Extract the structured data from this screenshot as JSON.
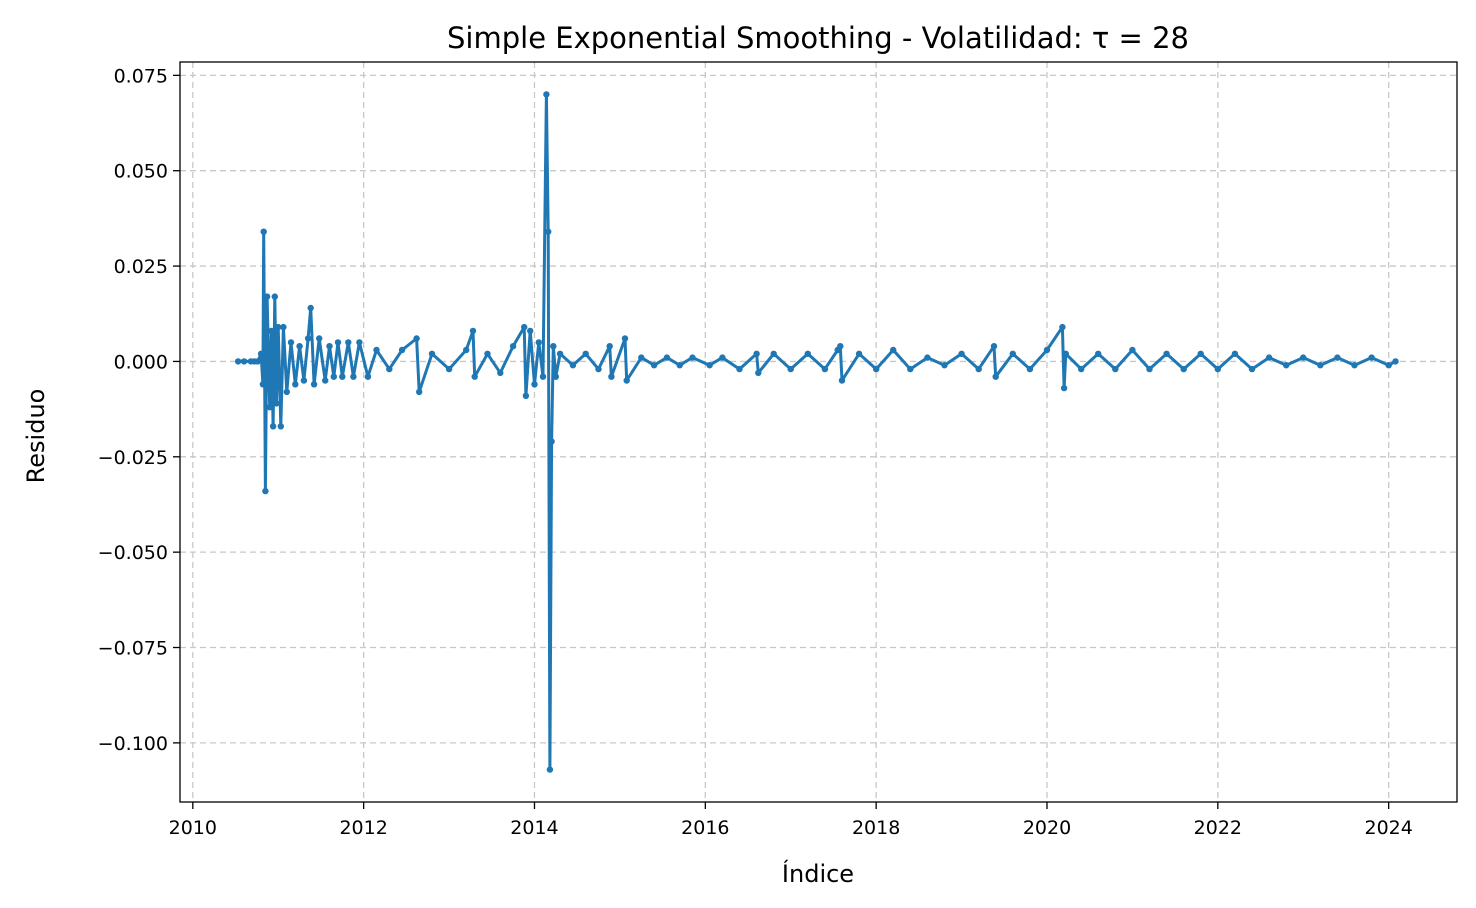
{
  "chart_data": {
    "type": "line",
    "title": "Simple Exponential Smoothing - Volatilidad: τ = 28",
    "xlabel": "Índice",
    "ylabel": "Residuo",
    "xlim": [
      2009.85,
      2024.8
    ],
    "ylim": [
      -0.1155,
      0.0785
    ],
    "xticks": [
      2010,
      2012,
      2014,
      2016,
      2018,
      2020,
      2022,
      2024
    ],
    "xtick_labels": [
      "2010",
      "2012",
      "2014",
      "2016",
      "2018",
      "2020",
      "2022",
      "2024"
    ],
    "yticks": [
      0.075,
      0.05,
      0.025,
      0.0,
      -0.025,
      -0.05,
      -0.075,
      -0.1
    ],
    "ytick_labels": [
      "0.075",
      "0.050",
      "0.025",
      "0.000",
      "−0.025",
      "−0.050",
      "−0.075",
      "−0.100"
    ],
    "grid": true,
    "legend": "none",
    "marker": "dot",
    "color": "#1f77b4",
    "series": [
      {
        "x": [
          2010.53,
          2010.6,
          2010.68,
          2010.72,
          2010.76,
          2010.8,
          2010.82,
          2010.83,
          2010.85,
          2010.87,
          2010.9,
          2010.92,
          2010.94,
          2010.96,
          2010.98,
          2011.0,
          2011.03,
          2011.06,
          2011.1,
          2011.15,
          2011.2,
          2011.25,
          2011.3,
          2011.35,
          2011.38,
          2011.42,
          2011.48,
          2011.55,
          2011.6,
          2011.65,
          2011.7,
          2011.75,
          2011.82,
          2011.88,
          2011.95,
          2012.05,
          2012.15,
          2012.3,
          2012.45,
          2012.62,
          2012.65,
          2012.8,
          2013.0,
          2013.2,
          2013.28,
          2013.3,
          2013.45,
          2013.6,
          2013.75,
          2013.88,
          2013.9,
          2013.95,
          2014.0,
          2014.05,
          2014.1,
          2014.14,
          2014.16,
          2014.18,
          2014.2,
          2014.22,
          2014.25,
          2014.3,
          2014.45,
          2014.6,
          2014.75,
          2014.88,
          2014.9,
          2015.06,
          2015.08,
          2015.25,
          2015.4,
          2015.55,
          2015.7,
          2015.85,
          2016.05,
          2016.2,
          2016.4,
          2016.6,
          2016.62,
          2016.8,
          2017.0,
          2017.2,
          2017.4,
          2017.55,
          2017.58,
          2017.6,
          2017.8,
          2018.0,
          2018.2,
          2018.4,
          2018.6,
          2018.8,
          2019.0,
          2019.2,
          2019.38,
          2019.4,
          2019.6,
          2019.8,
          2020.0,
          2020.18,
          2020.2,
          2020.22,
          2020.4,
          2020.6,
          2020.8,
          2021.0,
          2021.2,
          2021.4,
          2021.6,
          2021.8,
          2022.0,
          2022.2,
          2022.4,
          2022.6,
          2022.8,
          2023.0,
          2023.2,
          2023.4,
          2023.6,
          2023.8,
          2024.0,
          2024.08
        ],
        "y": [
          0.0,
          0.0,
          0.0,
          0.0,
          0.0,
          0.002,
          -0.006,
          0.034,
          -0.034,
          0.017,
          -0.012,
          0.008,
          -0.017,
          0.017,
          -0.011,
          0.009,
          -0.017,
          0.009,
          -0.008,
          0.005,
          -0.006,
          0.004,
          -0.005,
          0.006,
          0.014,
          -0.006,
          0.006,
          -0.005,
          0.004,
          -0.004,
          0.005,
          -0.004,
          0.005,
          -0.004,
          0.005,
          -0.004,
          0.003,
          -0.002,
          0.003,
          0.006,
          -0.008,
          0.002,
          -0.002,
          0.003,
          0.008,
          -0.004,
          0.002,
          -0.003,
          0.004,
          0.009,
          -0.009,
          0.008,
          -0.006,
          0.005,
          -0.004,
          0.07,
          0.034,
          -0.107,
          -0.021,
          0.004,
          -0.004,
          0.002,
          -0.001,
          0.002,
          -0.002,
          0.004,
          -0.004,
          0.006,
          -0.005,
          0.001,
          -0.001,
          0.001,
          -0.001,
          0.001,
          -0.001,
          0.001,
          -0.002,
          0.002,
          -0.003,
          0.002,
          -0.002,
          0.002,
          -0.002,
          0.003,
          0.004,
          -0.005,
          0.002,
          -0.002,
          0.003,
          -0.002,
          0.001,
          -0.001,
          0.002,
          -0.002,
          0.004,
          -0.004,
          0.002,
          -0.002,
          0.003,
          0.009,
          -0.007,
          0.002,
          -0.002,
          0.002,
          -0.002,
          0.003,
          -0.002,
          0.002,
          -0.002,
          0.002,
          -0.002,
          0.002,
          -0.002,
          0.001,
          -0.001,
          0.001,
          -0.001,
          0.001,
          -0.001,
          0.001,
          -0.001,
          0.0
        ]
      }
    ]
  }
}
